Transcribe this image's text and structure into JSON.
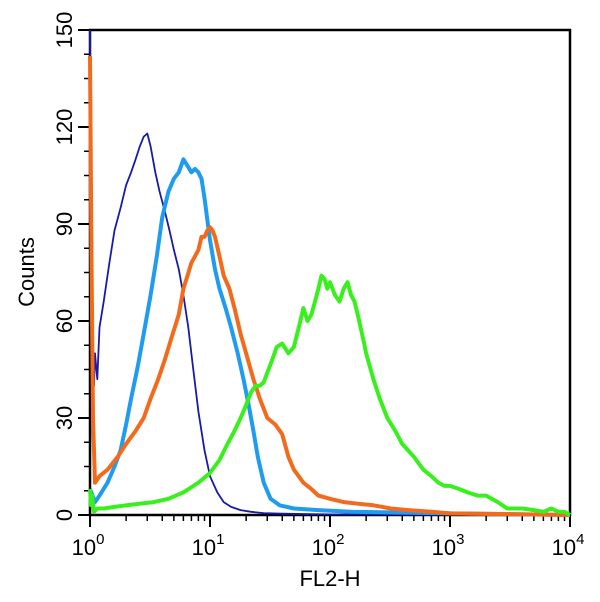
{
  "chart_data": {
    "type": "line",
    "title": "",
    "xlabel": "FL2-H",
    "ylabel": "Counts",
    "xscale": "log",
    "xlim": [
      1,
      10000
    ],
    "ylim": [
      0,
      150
    ],
    "x_ticks": [
      {
        "base": "10",
        "exp": "0"
      },
      {
        "base": "10",
        "exp": "1"
      },
      {
        "base": "10",
        "exp": "2"
      },
      {
        "base": "10",
        "exp": "3"
      },
      {
        "base": "10",
        "exp": "4"
      }
    ],
    "y_ticks": [
      "0",
      "30",
      "60",
      "90",
      "120",
      "150"
    ],
    "grid": false,
    "series": [
      {
        "name": "navy",
        "color": "#1a1aa8",
        "x": [
          1.0,
          1.02,
          1.05,
          1.08,
          1.1,
          1.15,
          1.2,
          1.3,
          1.45,
          1.6,
          1.8,
          2.0,
          2.2,
          2.4,
          2.6,
          2.8,
          3.0,
          3.2,
          3.5,
          3.8,
          4.2,
          4.6,
          5.0,
          5.5,
          6.0,
          6.6,
          7.2,
          8.0,
          9.0,
          10.0,
          11.5,
          13.0,
          15.0,
          18.0,
          22.0,
          28.0,
          40.0,
          60.0,
          100.0,
          1000.0,
          10000.0
        ],
        "y": [
          150,
          80,
          55,
          40,
          50,
          42,
          58,
          66,
          78,
          88,
          95,
          102,
          106,
          110,
          114,
          117,
          118,
          114,
          106,
          100,
          94,
          88,
          82,
          76,
          68,
          58,
          46,
          32,
          20,
          12,
          7,
          4,
          2.5,
          1.5,
          1,
          0.6,
          0.4,
          0.3,
          0.2,
          0.1,
          0
        ]
      },
      {
        "name": "sky-blue",
        "color": "#1f9bf0",
        "x": [
          1.0,
          1.1,
          1.2,
          1.4,
          1.6,
          1.8,
          2.0,
          2.2,
          2.5,
          2.8,
          3.2,
          3.6,
          4.0,
          4.5,
          5.0,
          5.5,
          6.0,
          6.5,
          7.0,
          7.5,
          8.0,
          8.5,
          9.0,
          10.0,
          11.0,
          12.0,
          13.5,
          15.0,
          17.0,
          19.0,
          21.0,
          23.0,
          25.0,
          28.0,
          32.0,
          38.0,
          50.0,
          80.0,
          150.0,
          1000.0,
          10000.0
        ],
        "y": [
          8,
          4,
          6,
          10,
          15,
          20,
          28,
          36,
          46,
          56,
          68,
          80,
          92,
          100,
          104,
          106,
          110,
          108,
          106,
          107,
          106,
          104,
          98,
          85,
          76,
          70,
          64,
          58,
          50,
          42,
          34,
          26,
          18,
          10,
          5,
          3,
          2,
          1.5,
          1,
          0.5,
          0
        ]
      },
      {
        "name": "orange",
        "color": "#f26b1d",
        "x": [
          1.0,
          1.03,
          1.06,
          1.1,
          1.2,
          1.4,
          1.7,
          2.0,
          2.4,
          2.8,
          3.2,
          3.7,
          4.2,
          4.8,
          5.5,
          6.0,
          6.5,
          7.0,
          7.5,
          8.0,
          8.5,
          9.0,
          9.5,
          10.0,
          10.5,
          11.0,
          12.0,
          13.0,
          14.5,
          16.0,
          18.0,
          20.0,
          23.0,
          26.0,
          30.0,
          35.0,
          40.0,
          45.0,
          50.0,
          60.0,
          70.0,
          80.0,
          100.0,
          130.0,
          170.0,
          230.0,
          320.0,
          450.0,
          700.0,
          1000.0,
          10000.0
        ],
        "y": [
          142,
          80,
          30,
          10,
          12,
          14,
          18,
          22,
          26,
          30,
          36,
          42,
          48,
          55,
          62,
          70,
          74,
          78,
          80,
          82,
          86,
          86,
          88,
          89,
          88,
          86,
          80,
          74,
          70,
          64,
          56,
          50,
          42,
          36,
          30,
          28,
          25,
          18,
          14,
          10,
          8,
          6,
          5,
          4,
          3.5,
          3,
          2,
          1.5,
          1,
          0.5,
          0
        ]
      },
      {
        "name": "green",
        "color": "#39f01e",
        "x": [
          1.0,
          1.02,
          1.04,
          1.08,
          1.15,
          1.3,
          1.6,
          2.0,
          2.6,
          3.4,
          4.5,
          6.0,
          8.0,
          10.0,
          12.0,
          14.0,
          16.0,
          18.0,
          20.0,
          22.0,
          24.0,
          26.0,
          28.0,
          30.0,
          33.0,
          36.0,
          40.0,
          45.0,
          50.0,
          55.0,
          60.0,
          65.0,
          70.0,
          75.0,
          80.0,
          85.0,
          90.0,
          95.0,
          100.0,
          110.0,
          120.0,
          130.0,
          140.0,
          150.0,
          160.0,
          170.0,
          180.0,
          190.0,
          200.0,
          230.0,
          260.0,
          300.0,
          350.0,
          400.0,
          500.0,
          600.0,
          700.0,
          800.0,
          900.0,
          1000.0,
          1200.0,
          1400.0,
          1700.0,
          2000.0,
          2500.0,
          3000.0,
          4000.0,
          5000.0,
          6000.0,
          7000.0,
          8000.0,
          9000.0,
          10000.0
        ],
        "y": [
          8,
          3,
          6,
          1,
          2,
          2,
          2.5,
          3,
          3.5,
          4,
          5,
          7,
          10,
          13,
          17,
          22,
          26,
          30,
          34,
          38,
          40,
          40,
          41,
          44,
          48,
          52,
          53,
          50,
          52,
          58,
          64,
          60,
          62,
          66,
          70,
          74,
          73,
          70,
          72,
          68,
          66,
          70,
          72,
          68,
          66,
          62,
          58,
          54,
          50,
          42,
          36,
          30,
          26,
          22,
          18,
          14,
          12,
          10,
          9,
          9,
          8,
          7,
          6,
          6,
          4,
          2,
          2,
          1.5,
          1,
          2,
          1,
          1,
          0
        ]
      }
    ]
  }
}
